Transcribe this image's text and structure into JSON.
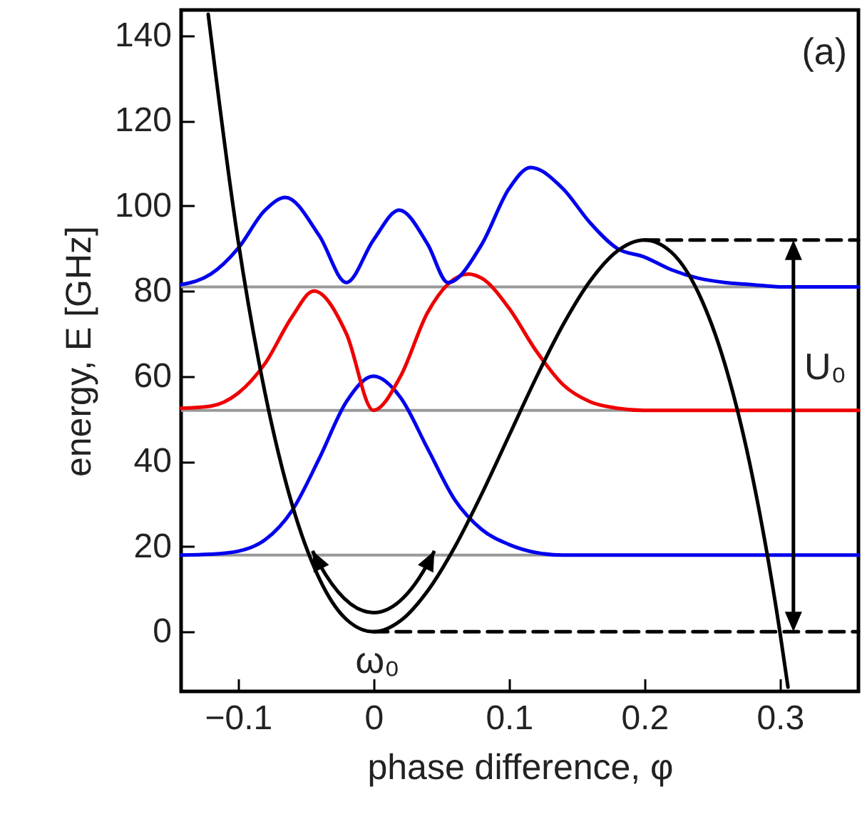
{
  "chart_data": {
    "type": "line",
    "xlabel": "phase difference, φ",
    "ylabel": "energy, E [GHz]",
    "xlim": [
      -0.142,
      0.358
    ],
    "ylim": [
      -14,
      146
    ],
    "xticks": [
      -0.1,
      0,
      0.1,
      0.2,
      0.3
    ],
    "yticks": [
      0,
      20,
      40,
      60,
      80,
      100,
      120,
      140
    ],
    "grid": false,
    "marker": "none",
    "ref_lines": [
      {
        "axis": "y",
        "value": 18,
        "color": "#999999"
      },
      {
        "axis": "y",
        "value": 52,
        "color": "#999999"
      },
      {
        "axis": "y",
        "value": 81,
        "color": "#999999"
      }
    ],
    "series": [
      {
        "color": "#0000ee",
        "x": [
          -0.142,
          -0.12,
          -0.1,
          -0.08,
          -0.06,
          -0.04,
          -0.02,
          0,
          0.02,
          0.04,
          0.06,
          0.08,
          0.1,
          0.12,
          0.14,
          0.16,
          0.2,
          0.25,
          0.3,
          0.358
        ],
        "values": [
          18,
          18.2,
          18.9,
          21.6,
          28.5,
          40.7,
          54,
          60,
          55,
          43,
          31,
          24,
          20.5,
          18.6,
          18,
          18,
          18,
          18,
          18,
          18
        ]
      },
      {
        "color": "#ee0000",
        "x": [
          -0.142,
          -0.12,
          -0.1,
          -0.08,
          -0.06,
          -0.044,
          -0.02,
          0,
          0.02,
          0.04,
          0.07,
          0.08,
          0.1,
          0.12,
          0.14,
          0.16,
          0.18,
          0.2,
          0.25,
          0.3,
          0.358
        ],
        "values": [
          52.5,
          53,
          56,
          63,
          74,
          80,
          70,
          52,
          60,
          75,
          84,
          83,
          76,
          66,
          58,
          54,
          52.5,
          52,
          52,
          52,
          52
        ]
      },
      {
        "color": "#0000ee",
        "x": [
          -0.142,
          -0.12,
          -0.1,
          -0.08,
          -0.065,
          -0.04,
          -0.02,
          0,
          0.019,
          0.04,
          0.055,
          0.08,
          0.1,
          0.116,
          0.14,
          0.16,
          0.18,
          0.2,
          0.22,
          0.24,
          0.26,
          0.28,
          0.3,
          0.358
        ],
        "values": [
          81.5,
          84,
          90,
          99,
          102,
          93,
          82,
          92,
          99,
          91,
          82,
          91,
          104,
          109,
          104,
          96,
          90,
          88,
          85,
          83,
          82,
          81.5,
          81,
          81
        ]
      },
      {
        "color": "#000000",
        "x": [
          -0.122,
          -0.1,
          -0.08,
          -0.06,
          -0.04,
          -0.02,
          0,
          0.02,
          0.04,
          0.06,
          0.08,
          0.1,
          0.12,
          0.14,
          0.16,
          0.18,
          0.2,
          0.22,
          0.24,
          0.26,
          0.28,
          0.3,
          0.306
        ],
        "values": [
          145,
          92,
          56,
          29.8,
          12.5,
          2.9,
          0,
          2.6,
          9.6,
          19.9,
          32.4,
          46,
          59.6,
          72.1,
          82.4,
          89.4,
          92,
          89.1,
          79.5,
          62.2,
          36.1,
          0,
          -13
        ]
      },
      {
        "color": "#000000",
        "line_style": "dashed",
        "x": [
          0.2,
          0.358
        ],
        "values": [
          92,
          92
        ]
      },
      {
        "color": "#000000",
        "line_style": "dashed",
        "x": [
          0,
          0.358
        ],
        "values": [
          0,
          0
        ]
      }
    ],
    "annotations": [
      "(a)",
      "U₀",
      "ω₀"
    ]
  }
}
